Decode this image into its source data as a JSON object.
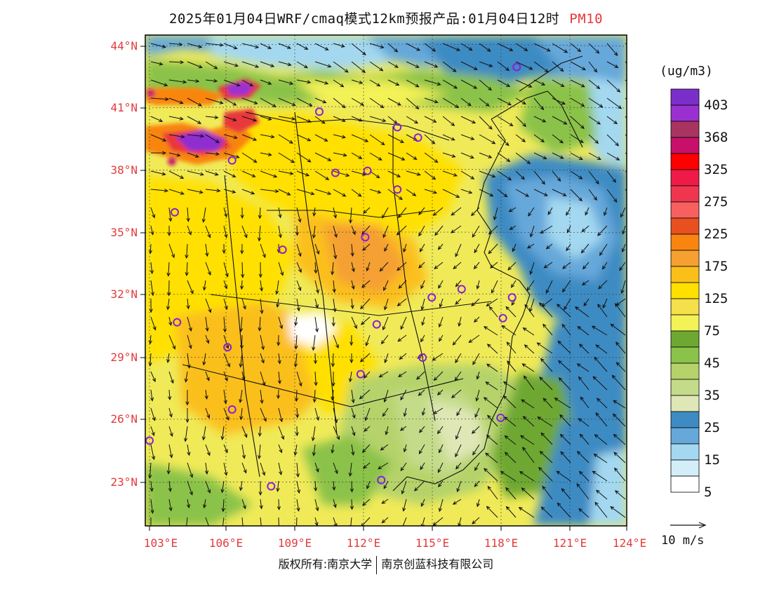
{
  "title": {
    "main": "2025年01月04日WRF/cmaq模式12km预报产品:01月04日12时",
    "pollutant": "PM10"
  },
  "lat_labels": [
    "44°N",
    "41°N",
    "38°N",
    "35°N",
    "32°N",
    "29°N",
    "26°N",
    "23°N"
  ],
  "lon_labels": [
    "103°E",
    "106°E",
    "109°E",
    "112°E",
    "115°E",
    "118°E",
    "121°E",
    "124°E"
  ],
  "legend": {
    "unit": "(ug/m3)",
    "levels": [
      {
        "label": "403",
        "color": "#7b2fc9"
      },
      {
        "label": "",
        "color": "#9b30d0"
      },
      {
        "label": "368",
        "color": "#a83560"
      },
      {
        "label": "",
        "color": "#c8106a"
      },
      {
        "label": "325",
        "color": "#ff0000"
      },
      {
        "label": "",
        "color": "#f01a48"
      },
      {
        "label": "275",
        "color": "#f0364f"
      },
      {
        "label": "",
        "color": "#f86060"
      },
      {
        "label": "225",
        "color": "#e85020"
      },
      {
        "label": "",
        "color": "#f98510"
      },
      {
        "label": "175",
        "color": "#f5a030"
      },
      {
        "label": "",
        "color": "#fbbf1a"
      },
      {
        "label": "125",
        "color": "#ffe000"
      },
      {
        "label": "",
        "color": "#f5df4a"
      },
      {
        "label": "75",
        "color": "#f3f257"
      },
      {
        "label": "",
        "color": "#6ea832"
      },
      {
        "label": "45",
        "color": "#8bc24a"
      },
      {
        "label": "",
        "color": "#b5d36a"
      },
      {
        "label": "35",
        "color": "#c4dc8a"
      },
      {
        "label": "",
        "color": "#dfe7b6"
      },
      {
        "label": "25",
        "color": "#3e8bc3"
      },
      {
        "label": "",
        "color": "#66a8da"
      },
      {
        "label": "15",
        "color": "#a3d8f0"
      },
      {
        "label": "",
        "color": "#d4eef9"
      },
      {
        "label": "5",
        "color": "#ffffff"
      }
    ]
  },
  "wind_scale": {
    "label": "10 m/s"
  },
  "copyright": {
    "left": "版权所有:南京大学",
    "right": "南京创蓝科技有限公司"
  },
  "stations": [
    [
      119.0,
      43.0
    ],
    [
      110.4,
      40.85
    ],
    [
      113.8,
      40.1
    ],
    [
      114.7,
      39.6
    ],
    [
      106.6,
      38.5
    ],
    [
      111.1,
      37.9
    ],
    [
      112.5,
      38.0
    ],
    [
      113.8,
      37.1
    ],
    [
      104.1,
      36.0
    ],
    [
      112.4,
      34.8
    ],
    [
      108.8,
      34.2
    ],
    [
      115.3,
      31.9
    ],
    [
      116.6,
      32.3
    ],
    [
      118.8,
      31.9
    ],
    [
      104.2,
      30.7
    ],
    [
      118.4,
      30.9
    ],
    [
      112.9,
      30.6
    ],
    [
      106.4,
      29.5
    ],
    [
      114.9,
      29.0
    ],
    [
      112.2,
      28.2
    ],
    [
      118.3,
      26.1
    ],
    [
      106.6,
      26.5
    ],
    [
      103.0,
      25.0
    ],
    [
      108.3,
      22.8
    ],
    [
      113.1,
      23.1
    ]
  ]
}
